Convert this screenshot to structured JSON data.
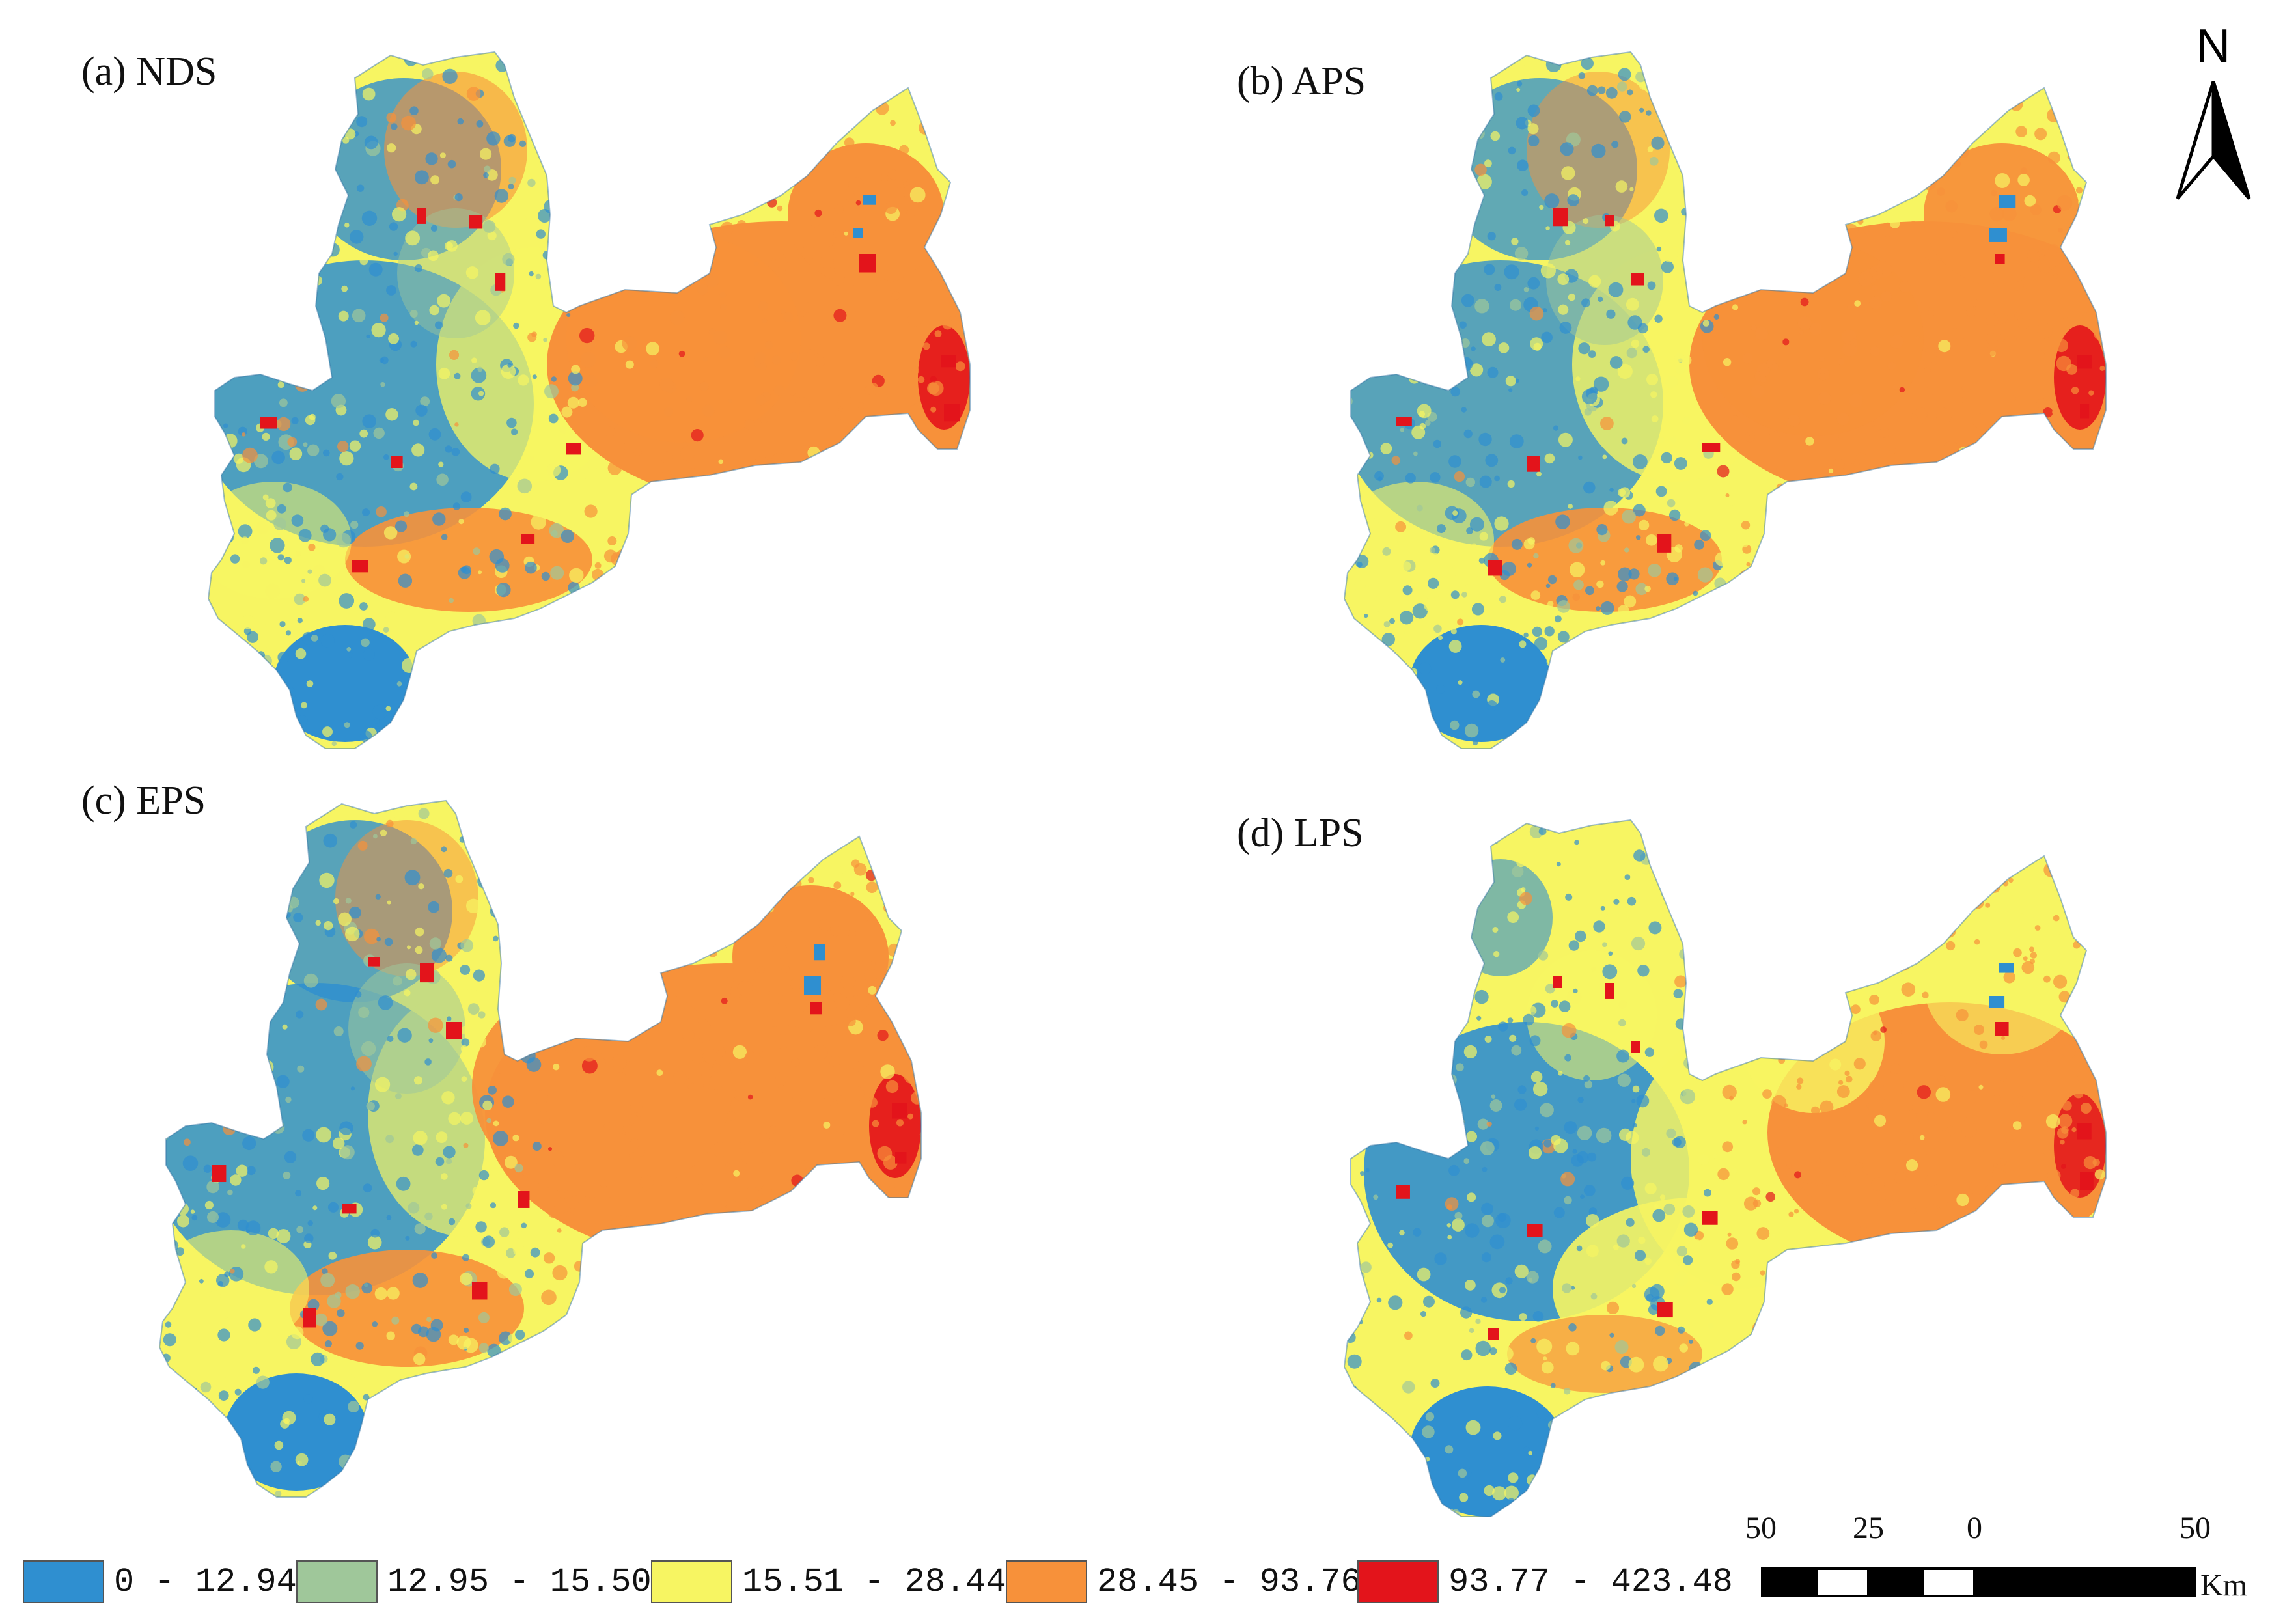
{
  "panels": [
    {
      "id": "a",
      "title": "(a) NDS"
    },
    {
      "id": "b",
      "title": "(b) APS"
    },
    {
      "id": "c",
      "title": "(c) EPS"
    },
    {
      "id": "d",
      "title": "(d) LPS"
    }
  ],
  "north_arrow": {
    "label": "N",
    "icon": "north-arrow-icon"
  },
  "legend": {
    "classes": [
      {
        "label": "0 - 12.94",
        "color": "#2f8fd0"
      },
      {
        "label": "12.95 - 15.50",
        "color": "#9fc79a"
      },
      {
        "label": "15.51 - 28.44",
        "color": "#f7f562"
      },
      {
        "label": "28.45 - 93.76",
        "color": "#f7913a"
      },
      {
        "label": "93.77 - 423.48",
        "color": "#e3141b"
      }
    ]
  },
  "scale_bar": {
    "ticks": [
      "50",
      "25",
      "0",
      "50"
    ],
    "unit": "Km"
  }
}
